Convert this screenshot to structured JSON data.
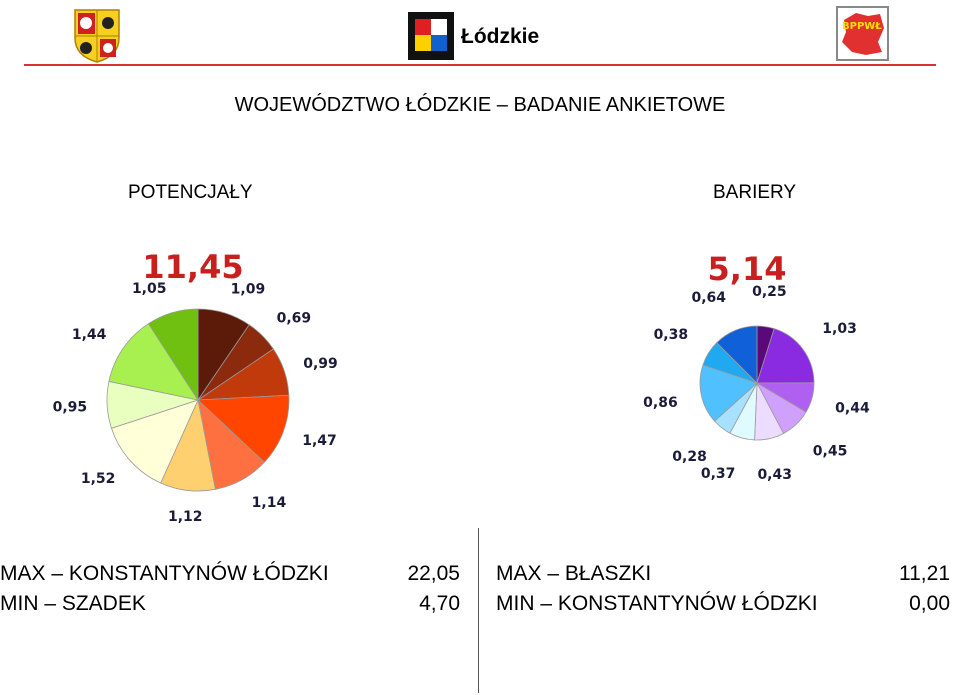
{
  "title": "WOJEWÓDZTWO ŁÓDZKIE – BADANIE ANKIETOWE",
  "logos": {
    "center_text": "Łódzkie",
    "right_text": "BPPWŁ"
  },
  "colors": {
    "header_line": "#d9342b",
    "total_potencjaly": "#c8201e",
    "total_bariery": "#c8201e"
  },
  "chart_data": [
    {
      "type": "pie",
      "title": "POTENCJAŁY",
      "total": "11,45",
      "labels": [
        "1,09",
        "0,69",
        "0,99",
        "1,47",
        "1,14",
        "1,12",
        "1,52",
        "0,95",
        "1,44",
        "1,05"
      ],
      "values": [
        1.09,
        0.69,
        0.99,
        1.47,
        1.14,
        1.12,
        1.52,
        0.95,
        1.44,
        1.05
      ],
      "colors": [
        "#5c1a08",
        "#8b2a0c",
        "#c03a0c",
        "#ff4500",
        "#ff7040",
        "#ffd070",
        "#ffffd8",
        "#e8ffc0",
        "#a8f050",
        "#6fc010"
      ]
    },
    {
      "type": "pie",
      "title": "BARIERY",
      "total": "5,14",
      "labels": [
        "0,25",
        "1,03",
        "0,44",
        "0,45",
        "0,43",
        "0,37",
        "0,28",
        "0,86",
        "0,38",
        "0,64"
      ],
      "values": [
        0.25,
        1.03,
        0.44,
        0.45,
        0.43,
        0.37,
        0.28,
        0.86,
        0.38,
        0.64
      ],
      "colors": [
        "#5a0a78",
        "#8a2be2",
        "#b060f0",
        "#d0a0ff",
        "#ecdcff",
        "#e0fbff",
        "#a8e0ff",
        "#50c0ff",
        "#20a8f0",
        "#1060d8"
      ]
    }
  ],
  "stats": {
    "left": [
      {
        "label": "MAX – KONSTANTYNÓW ŁÓDZKI",
        "value": "22,05"
      },
      {
        "label": "MIN – SZADEK",
        "value": "4,70"
      }
    ],
    "right": [
      {
        "label": "MAX – BŁASZKI",
        "value": "11,21"
      },
      {
        "label": "MIN – KONSTANTYNÓW ŁÓDZKI",
        "value": "0,00"
      }
    ]
  }
}
